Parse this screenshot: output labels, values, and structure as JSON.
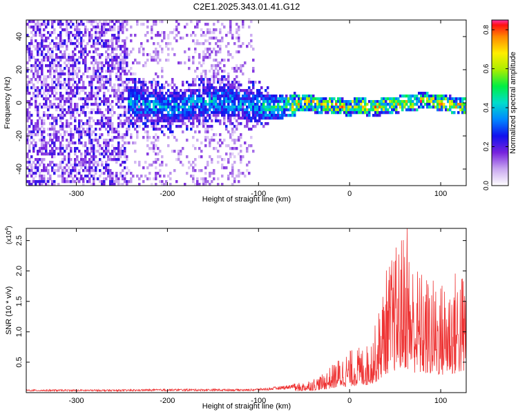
{
  "title": "C2E1.2025.343.01.41.G12",
  "chart_data": [
    {
      "type": "heatmap",
      "xlabel": "Height of straight line (km)",
      "ylabel": "Frequency (Hz)",
      "xlim": [
        -355,
        128
      ],
      "ylim": [
        -50,
        50
      ],
      "xticks": [
        -300,
        -200,
        -100,
        0,
        100
      ],
      "yticks": [
        -40,
        -20,
        0,
        20,
        40
      ],
      "grid": false,
      "colorbar": {
        "label": "Normalized spectral amplitude",
        "range": [
          0.0,
          0.85
        ],
        "ticks": [
          "0.0",
          "0.2",
          "0.4",
          "0.6",
          "0.8"
        ]
      },
      "features": {
        "noise_region_x": [
          -355,
          -105
        ],
        "noise_dense_x": [
          -355,
          -245
        ],
        "band_start_x": -245,
        "band_center_hz": 0,
        "band_halfwidth_hz": 6,
        "band_peak_amplitude": 0.85
      }
    },
    {
      "type": "line",
      "xlabel": "Height of straight line (km)",
      "ylabel": "SNR (10 * v/v)",
      "multiplier": "(x10",
      "multiplier_exp": "4",
      "multiplier_close": ")",
      "xlim": [
        -355,
        128
      ],
      "ylim": [
        0,
        2.7
      ],
      "xticks": [
        -300,
        -200,
        -100,
        0,
        100
      ],
      "yticks": [
        "0.5",
        "1.0",
        "1.5",
        "2.0",
        "2.5"
      ],
      "grid": false,
      "color": "#ee3333",
      "envelope": {
        "x": [
          -355,
          -250,
          -200,
          -150,
          -110,
          -90,
          -70,
          -50,
          -30,
          -20,
          -10,
          0,
          10,
          20,
          30,
          40,
          50,
          60,
          70,
          80,
          90,
          100,
          110,
          120,
          128
        ],
        "max": [
          0.05,
          0.05,
          0.06,
          0.06,
          0.06,
          0.08,
          0.12,
          0.18,
          0.3,
          0.45,
          0.6,
          0.7,
          0.75,
          0.8,
          1.2,
          2.05,
          2.4,
          2.7,
          2.2,
          2.0,
          1.9,
          1.85,
          1.95,
          2.1,
          2.0
        ]
      },
      "peak": {
        "x": 63,
        "y": 2.7
      }
    }
  ]
}
